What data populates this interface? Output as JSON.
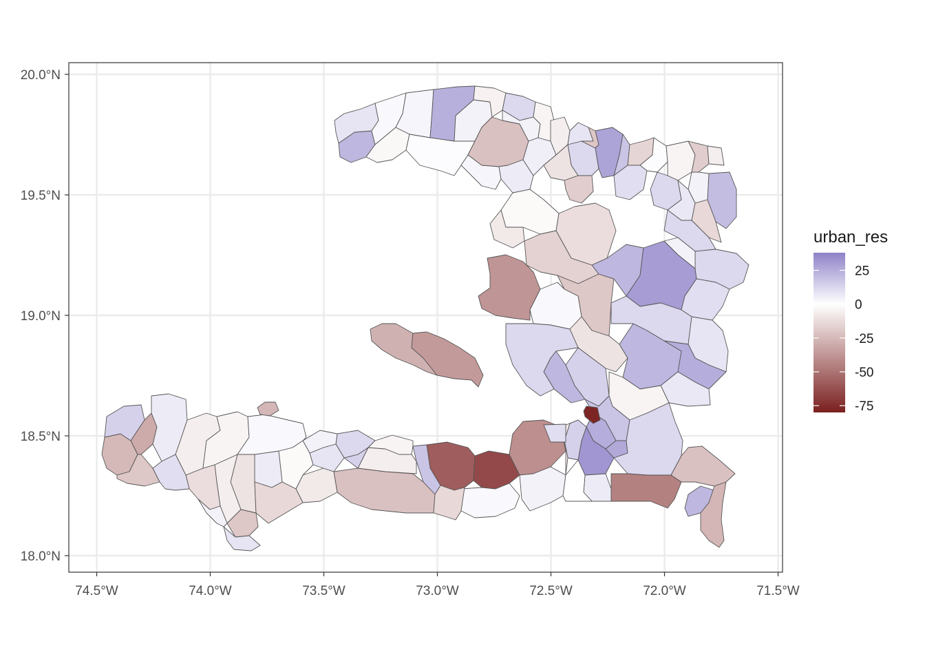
{
  "legend": {
    "title": "urban_res",
    "breaks": [
      25,
      0,
      -25,
      -50,
      -75
    ],
    "labels": [
      "25",
      "0",
      "-25",
      "-50",
      "-75"
    ],
    "limits": [
      -80,
      38
    ]
  },
  "axes": {
    "x": {
      "values": [
        -74.5,
        -74.0,
        -73.5,
        -73.0,
        -72.5,
        -72.0,
        -71.5
      ],
      "labels": [
        "74.5°W",
        "74.0°W",
        "73.5°W",
        "73.0°W",
        "72.5°W",
        "72.0°W",
        "71.5°W"
      ]
    },
    "y": {
      "values": [
        18.0,
        18.5,
        19.0,
        19.5,
        20.0
      ],
      "labels": [
        "18.0°N",
        "18.5°N",
        "19.0°N",
        "19.5°N",
        "20.0°N"
      ]
    }
  },
  "colors": {
    "low": "#7a1f1f",
    "mid": "#ffffff",
    "high": "#8f82c8",
    "grid": "#ebebeb",
    "border": "#555555"
  },
  "chart_data": {
    "type": "choropleth",
    "fill_variable": "urban_res",
    "grid": true,
    "legend_position": "right",
    "regions": [
      {
        "id": "nw-far-west",
        "value": 22
      },
      {
        "id": "nw-west-top",
        "value": 8
      },
      {
        "id": "nw-cape",
        "value": 2
      },
      {
        "id": "nw-port-de-paix-area",
        "value": -3
      },
      {
        "id": "nw-coast-west",
        "value": 3
      },
      {
        "id": "nw-north-coast-1",
        "value": 24
      },
      {
        "id": "nw-north-coast-2",
        "value": 4
      },
      {
        "id": "nw-north-coast-3",
        "value": -5
      },
      {
        "id": "nw-north-coast-4",
        "value": 12
      },
      {
        "id": "nw-center",
        "value": 1
      },
      {
        "id": "nw-south-1",
        "value": 3
      },
      {
        "id": "nw-inland-red",
        "value": -22
      },
      {
        "id": "nw-south-2",
        "value": 4
      },
      {
        "id": "nw-south-3",
        "value": 6
      },
      {
        "id": "n-west-1",
        "value": 5
      },
      {
        "id": "n-west-2",
        "value": -4
      },
      {
        "id": "n-west-3",
        "value": -6
      },
      {
        "id": "n-cap-1",
        "value": 12
      },
      {
        "id": "n-cap-2",
        "value": -10
      },
      {
        "id": "n-cap-3",
        "value": -18
      },
      {
        "id": "n-cap-4",
        "value": 8
      },
      {
        "id": "n-cap-5",
        "value": -20
      },
      {
        "id": "n-cap-6",
        "value": 28
      },
      {
        "id": "n-cap-7",
        "value": 18
      },
      {
        "id": "ne-1",
        "value": -15
      },
      {
        "id": "ne-2",
        "value": 1
      },
      {
        "id": "ne-3",
        "value": -4
      },
      {
        "id": "ne-4",
        "value": 10
      },
      {
        "id": "ne-5",
        "value": -18
      },
      {
        "id": "ne-6",
        "value": -6
      },
      {
        "id": "ne-east",
        "value": 20
      },
      {
        "id": "ne-7",
        "value": 4
      },
      {
        "id": "ne-8",
        "value": 12
      },
      {
        "id": "ne-9",
        "value": 7
      },
      {
        "id": "ne-10",
        "value": -14
      },
      {
        "id": "ne-11",
        "value": 12
      },
      {
        "id": "gonaives-north",
        "value": -2
      },
      {
        "id": "gonaives-mid",
        "value": -8
      },
      {
        "id": "gonaives-big",
        "value": -12
      },
      {
        "id": "artibonite-1",
        "value": -16
      },
      {
        "id": "artibonite-2",
        "value": -20
      },
      {
        "id": "centre-north",
        "value": 22
      },
      {
        "id": "centre-big",
        "value": 30
      },
      {
        "id": "centre-east-1",
        "value": 12
      },
      {
        "id": "centre-east-2",
        "value": 4
      },
      {
        "id": "centre-east-3",
        "value": 10
      },
      {
        "id": "nw-peninsula-red",
        "value": -38
      },
      {
        "id": "artibonite-3",
        "value": 2
      },
      {
        "id": "centre-mid-1",
        "value": 12
      },
      {
        "id": "centre-mid-2",
        "value": -10
      },
      {
        "id": "centre-mid-3",
        "value": 8
      },
      {
        "id": "centre-south-1",
        "value": 22
      },
      {
        "id": "centre-south-2",
        "value": 25
      },
      {
        "id": "centre-south-3",
        "value": 7
      },
      {
        "id": "centre-south-4",
        "value": 14
      },
      {
        "id": "centre-south-5",
        "value": -4
      },
      {
        "id": "centre-south-6",
        "value": 22
      },
      {
        "id": "west-coast-1",
        "value": 12
      },
      {
        "id": "west-coast-2",
        "value": 18
      },
      {
        "id": "gonave-west",
        "value": -28
      },
      {
        "id": "gonave-east",
        "value": -36
      },
      {
        "id": "port-au-prince",
        "value": -78
      },
      {
        "id": "pv-1",
        "value": 25
      },
      {
        "id": "pv-2",
        "value": 32
      },
      {
        "id": "pv-3",
        "value": 26
      },
      {
        "id": "pv-4",
        "value": 14
      },
      {
        "id": "se-1",
        "value": 12
      },
      {
        "id": "se-2",
        "value": 6
      },
      {
        "id": "se-3",
        "value": -45
      },
      {
        "id": "se-4",
        "value": -22
      },
      {
        "id": "se-5",
        "value": 22
      },
      {
        "id": "se-6",
        "value": -26
      },
      {
        "id": "west-1",
        "value": -58
      },
      {
        "id": "west-2",
        "value": -65
      },
      {
        "id": "west-3",
        "value": -40
      },
      {
        "id": "west-4",
        "value": 18
      },
      {
        "id": "west-5",
        "value": 4
      },
      {
        "id": "west-6",
        "value": -8
      },
      {
        "id": "west-7",
        "value": 0
      },
      {
        "id": "west-8",
        "value": 2
      },
      {
        "id": "west-9",
        "value": 10
      },
      {
        "id": "sud-1",
        "value": -22
      },
      {
        "id": "sud-2",
        "value": -14
      },
      {
        "id": "sud-3",
        "value": -6
      },
      {
        "id": "sud-4",
        "value": 14
      },
      {
        "id": "sud-5",
        "value": 12
      },
      {
        "id": "sud-6",
        "value": -4
      },
      {
        "id": "sud-7",
        "value": -8
      },
      {
        "id": "sud-8",
        "value": 4
      },
      {
        "id": "sud-9",
        "value": 8
      },
      {
        "id": "sud-10",
        "value": -2
      },
      {
        "id": "sud-11",
        "value": 6
      },
      {
        "id": "sud-12",
        "value": -10
      },
      {
        "id": "sud-13",
        "value": -14
      },
      {
        "id": "sud-14",
        "value": -6
      },
      {
        "id": "sud-15",
        "value": -20
      },
      {
        "id": "sud-16",
        "value": 8
      },
      {
        "id": "sud-17",
        "value": -12
      },
      {
        "id": "sud-18",
        "value": 4
      },
      {
        "id": "ga-1",
        "value": -25
      },
      {
        "id": "ga-2",
        "value": 14
      },
      {
        "id": "ga-3",
        "value": -30
      },
      {
        "id": "ga-4",
        "value": -20
      },
      {
        "id": "ga-5",
        "value": 6
      },
      {
        "id": "ga-6",
        "value": -6
      },
      {
        "id": "ga-7",
        "value": 10
      },
      {
        "id": "ga-8",
        "value": -4
      },
      {
        "id": "ga-9",
        "value": 2
      },
      {
        "id": "cayemites",
        "value": -26
      }
    ]
  }
}
